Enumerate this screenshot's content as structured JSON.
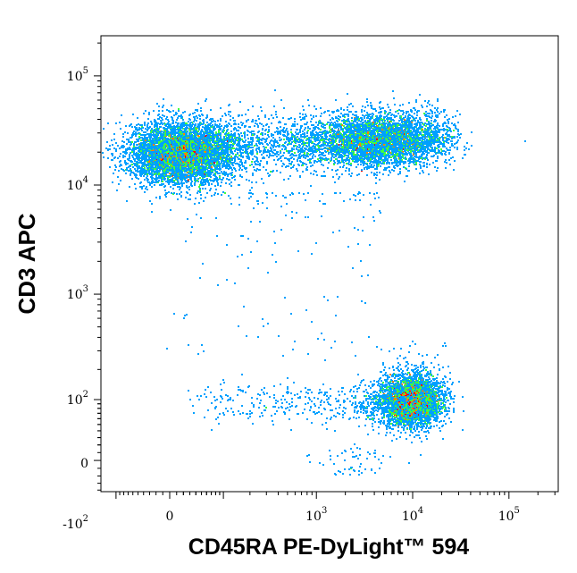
{
  "chart_data": {
    "type": "scatter",
    "subtype": "flow-cytometry density plot (pseudocolor)",
    "xlabel": "CD45RA PE-DyLight™ 594",
    "ylabel": "CD3 APC",
    "x_scale": "biexponential (logicle)",
    "y_scale": "biexponential (logicle)",
    "x_ticks": [
      {
        "value": 0,
        "base": "0",
        "exp": ""
      },
      {
        "value": 1000,
        "base": "10",
        "exp": "3"
      },
      {
        "value": 10000,
        "base": "10",
        "exp": "4"
      },
      {
        "value": 100000,
        "base": "10",
        "exp": "5"
      }
    ],
    "y_ticks": [
      {
        "value": 100000,
        "base": "10",
        "exp": "5"
      },
      {
        "value": 10000,
        "base": "10",
        "exp": "4"
      },
      {
        "value": 1000,
        "base": "10",
        "exp": "3"
      },
      {
        "value": 100,
        "base": "10",
        "exp": "2"
      },
      {
        "value": 0,
        "base": "0",
        "exp": ""
      },
      {
        "value": -100,
        "base": "-10",
        "exp": "2"
      }
    ],
    "colormap": [
      "#0000ff",
      "#00a0ff",
      "#00e0e0",
      "#40ff40",
      "#ffff00",
      "#ff8000",
      "#ff0000"
    ],
    "populations": [
      {
        "label": "",
        "x_center": 15,
        "y_center": 20000,
        "x_spread": 120,
        "y_spread": 0.12,
        "density": "high",
        "peak_color": "#ffb000"
      },
      {
        "label": "",
        "x_center": 4500,
        "y_center": 26000,
        "x_spread": 0.25,
        "y_spread": 0.11,
        "density": "medium",
        "peak_color": "#ffff00"
      },
      {
        "label": "",
        "x_center": 9500,
        "y_center": 100,
        "x_spread": 0.17,
        "y_spread": 35,
        "density": "very high",
        "peak_color": "#ff0000"
      }
    ],
    "grid": false,
    "legend": "none"
  }
}
